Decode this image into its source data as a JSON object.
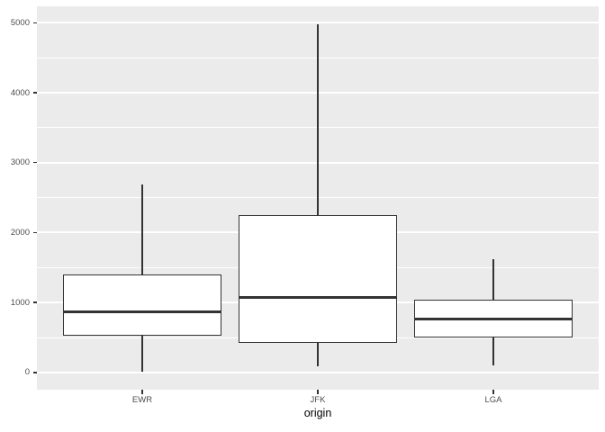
{
  "chart_data": {
    "type": "boxplot",
    "title": "",
    "xlabel": "origin",
    "ylabel": "",
    "categories": [
      "EWR",
      "JFK",
      "LGA"
    ],
    "series": [
      {
        "name": "EWR",
        "whisker_low": 17,
        "q1": 533,
        "median": 872,
        "q3": 1400,
        "whisker_high": 2693,
        "outliers": []
      },
      {
        "name": "JFK",
        "whisker_low": 94,
        "q1": 427,
        "median": 1069,
        "q3": 2248,
        "whisker_high": 4983,
        "outliers": []
      },
      {
        "name": "LGA",
        "whisker_low": 96,
        "q1": 502,
        "median": 762,
        "q3": 1035,
        "whisker_high": 1620,
        "outliers": []
      }
    ],
    "y_ticks": [
      0,
      1000,
      2000,
      3000,
      4000,
      5000
    ],
    "y_tick_labels": [
      "0",
      "1000",
      "2000",
      "3000",
      "4000",
      "5000"
    ],
    "y_minor_gridlines": [
      500,
      1500,
      2500,
      3500,
      4500
    ],
    "ylim": [
      -245,
      5235
    ],
    "x_slot_range": [
      0.4,
      3.6
    ],
    "box_width_units": 0.9,
    "grid": "major-and-minor",
    "legend": "none",
    "style": {
      "panel_bg": "#EBEBEB",
      "grid_color": "#FFFFFF",
      "box_border_color": "#333333",
      "box_fill": "#FFFFFF",
      "tick_label_color": "#4D4D4D",
      "axis_title_color": "#000000",
      "tick_mark_color": "#333333"
    }
  }
}
